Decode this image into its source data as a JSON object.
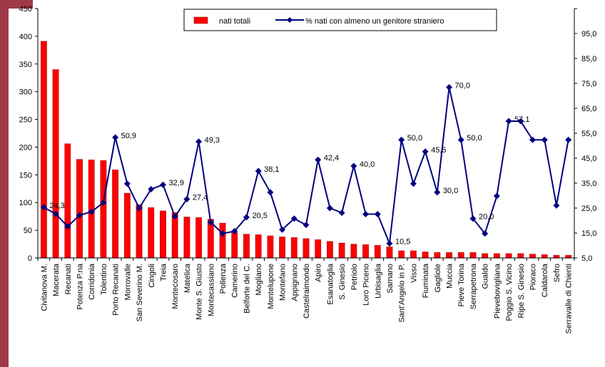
{
  "chart_data": {
    "type": "bar",
    "categories": [
      "Civitanova M.",
      "Macerata",
      "Recanati",
      "Potenza P.na",
      "Corridonia",
      "Tolentino",
      "Porto Recanati",
      "Morrovalle",
      "San Severino M.",
      "Cingoli",
      "Treia",
      "Montecosaro",
      "Matelica",
      "Monte S. Giusto",
      "Montecassiano",
      "Pollenza",
      "Camerino",
      "Belforte del C.",
      "Mogliano",
      "Montelupone",
      "Montefano",
      "Appignano",
      "Castelraimondo",
      "Apiro",
      "Esanatoglia",
      "S. Ginesio",
      "Petriolo",
      "Loro Piceno",
      "Urbisaglia",
      "Sarnano",
      "Sant'Angelo in P.",
      "Visso",
      "Fiuminata",
      "Gagliole",
      "Muccia",
      "Pieve Torina",
      "Serrapetrona",
      "Gualdo",
      "Pievebovigliana",
      "Poggio S. Vicino",
      "Ripe S. Ginesio",
      "Pioraco",
      "Caldarola",
      "Sefro",
      "Serravalle di Chienti"
    ],
    "series": [
      {
        "name": "nati totali",
        "axis": "left",
        "kind": "bar",
        "color": "#ff0000",
        "values": [
          391,
          340,
          206,
          178,
          177,
          176,
          159,
          117,
          96,
          91,
          85,
          82,
          74,
          73,
          70,
          63,
          46,
          43,
          42,
          40,
          38,
          37,
          35,
          33,
          30,
          27,
          25,
          24,
          23,
          20,
          13,
          13,
          11,
          10,
          10,
          10,
          10,
          8,
          8,
          8,
          8,
          7,
          6,
          5,
          5
        ]
      },
      {
        "name": "% nati con almeno un genitore straniero",
        "axis": "right",
        "kind": "line",
        "color": "#000080",
        "values": [
          24.3,
          21.8,
          17.0,
          21.3,
          22.6,
          26.1,
          50.9,
          33.3,
          24.0,
          31.2,
          32.9,
          20.8,
          27.4,
          49.3,
          18.6,
          14.3,
          15.2,
          20.5,
          38.1,
          30.0,
          15.8,
          20.0,
          17.6,
          42.4,
          24.0,
          22.2,
          40.0,
          21.7,
          21.7,
          10.5,
          50.0,
          33.3,
          45.5,
          30.0,
          70.0,
          50.0,
          20.0,
          14.3,
          28.6,
          57.1,
          57.1,
          50.0,
          50.0,
          25.0,
          50.0
        ]
      }
    ],
    "data_labels": [
      {
        "index": 0,
        "text": "24,3"
      },
      {
        "index": 6,
        "text": "50,9"
      },
      {
        "index": 10,
        "text": "32,9"
      },
      {
        "index": 12,
        "text": "27,4"
      },
      {
        "index": 13,
        "text": "49,3"
      },
      {
        "index": 17,
        "text": "20,5"
      },
      {
        "index": 18,
        "text": "38,1"
      },
      {
        "index": 23,
        "text": "42,4"
      },
      {
        "index": 26,
        "text": "40,0"
      },
      {
        "index": 29,
        "text": "10,5"
      },
      {
        "index": 30,
        "text": "50,0"
      },
      {
        "index": 32,
        "text": "45,5"
      },
      {
        "index": 33,
        "text": "30,0"
      },
      {
        "index": 34,
        "text": "70,0"
      },
      {
        "index": 35,
        "text": "50,0"
      },
      {
        "index": 36,
        "text": "20,0"
      },
      {
        "index": 39,
        "text": "57,1"
      }
    ],
    "left_axis": {
      "ticks": [
        "0",
        "50",
        "100",
        "150",
        "200",
        "250",
        "300",
        "350",
        "400",
        "450"
      ],
      "range": [
        0,
        450
      ]
    },
    "right_axis": {
      "ticks": [
        "5,0",
        "15,0",
        "25,0",
        "35,0",
        "45,0",
        "55,0",
        "65,0",
        "75,0",
        "85,0",
        "95,0"
      ],
      "range": [
        5,
        100
      ]
    },
    "grid": false,
    "legend_position": "top"
  }
}
